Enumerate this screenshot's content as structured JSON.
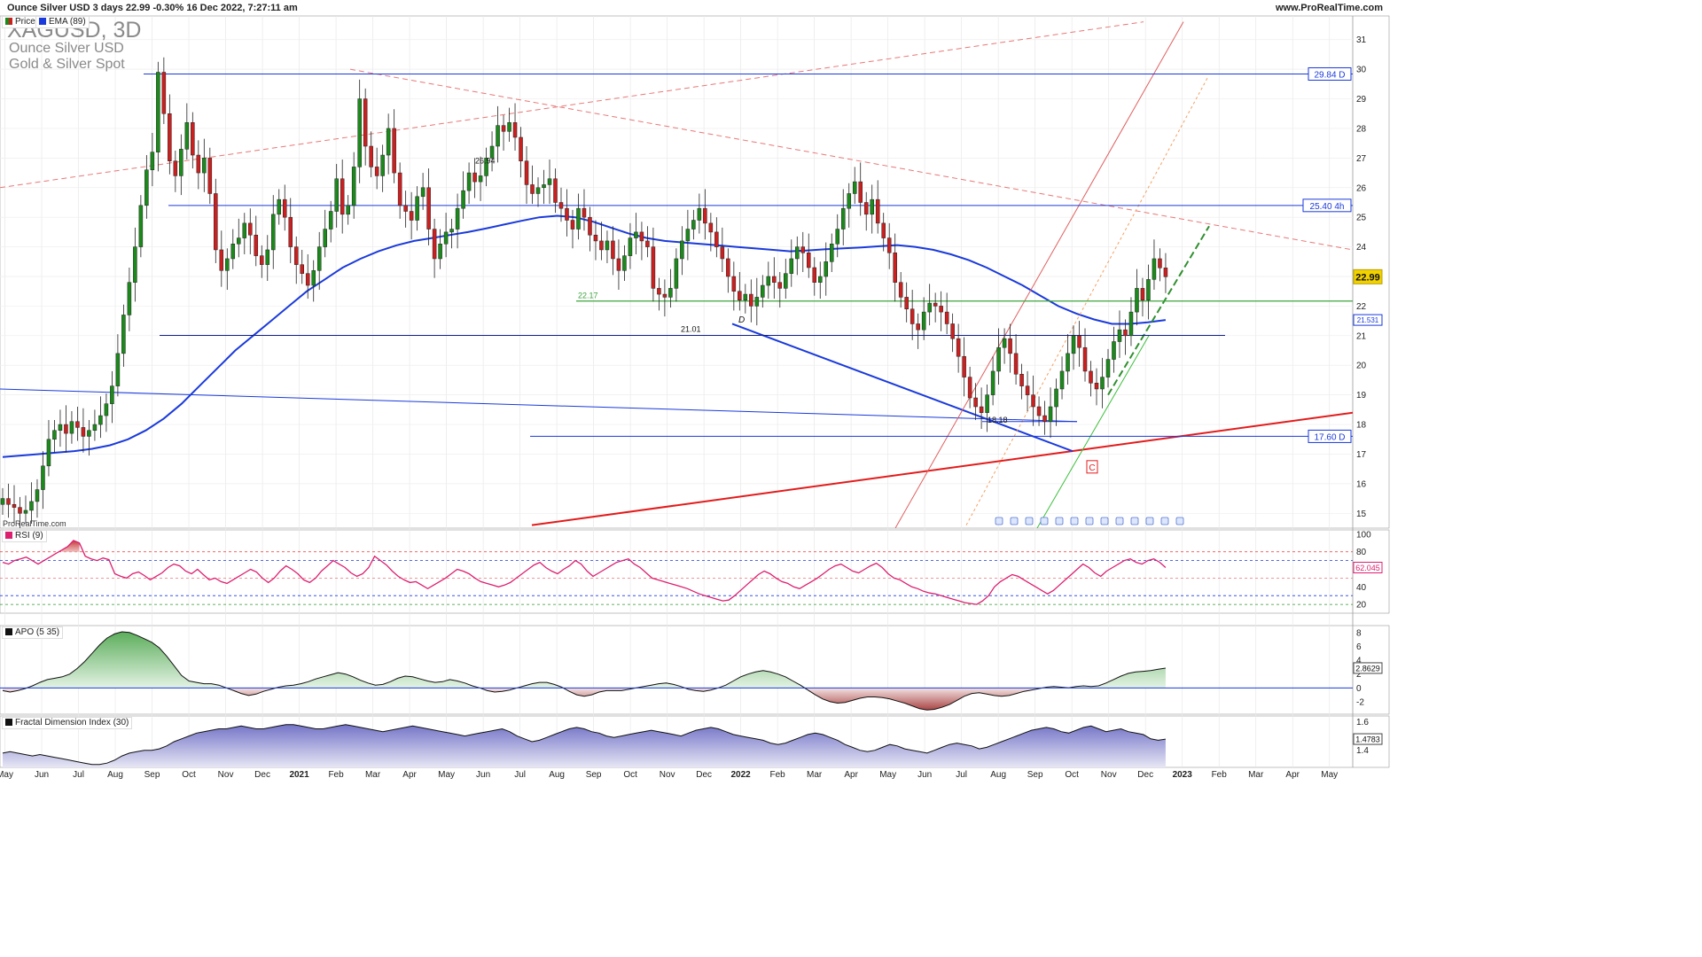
{
  "header": {
    "title": "Ounce Silver USD 3 days 22.99 -0.30% 16 Dec 2022, 7:27:11 am",
    "site": "www.ProRealTime.com"
  },
  "symbol": {
    "ticker": "XAGUSD, 3D",
    "name": "Ounce Silver USD",
    "category": "Gold & Silver Spot"
  },
  "legend": {
    "price": "Price",
    "ema": "EMA (89)",
    "rsi": "RSI (9)",
    "apo": "APO (5 35)",
    "fdi": "Fractal Dimension Index (30)"
  },
  "watermark": "ProRealTime.com",
  "colors": {
    "up": "#1a8a1a",
    "down": "#cc1f1f",
    "ema": "#1a3adb",
    "rsi": "#dd1f6f",
    "level_box": "#1a3adb",
    "price_box": "#f2d100",
    "trend_red": "#e31b1b",
    "support_green": "#3ca33c"
  },
  "chart_data": [
    {
      "type": "candlestick",
      "title": "XAGUSD, 3D",
      "x_ticks": [
        "May",
        "Jun",
        "Jul",
        "Aug",
        "Sep",
        "Oct",
        "Nov",
        "Dec",
        "2021",
        "Feb",
        "Mar",
        "Apr",
        "May",
        "Jun",
        "Jul",
        "Aug",
        "Sep",
        "Oct",
        "Nov",
        "Dec",
        "2022",
        "Feb",
        "Mar",
        "Apr",
        "May",
        "Jun",
        "Jul",
        "Aug",
        "Sep",
        "Oct",
        "Nov",
        "Dec",
        "2023",
        "Feb",
        "Mar",
        "Apr",
        "May"
      ],
      "x_range": [
        "2020-04-27",
        "2023-05-20"
      ],
      "ylim": [
        14.5,
        31.8
      ],
      "y_ticks": [
        15,
        16,
        17,
        18,
        19,
        20,
        21,
        22,
        23,
        24,
        25,
        26,
        27,
        28,
        29,
        30,
        31
      ],
      "last_price": 22.99,
      "closes": [
        15.5,
        15.3,
        15.2,
        15.0,
        15.1,
        15.4,
        15.8,
        16.6,
        17.5,
        17.8,
        18.0,
        17.7,
        18.1,
        17.9,
        17.6,
        17.8,
        18.0,
        18.3,
        18.7,
        19.3,
        20.4,
        21.7,
        22.8,
        24.0,
        25.4,
        26.6,
        27.2,
        29.9,
        28.5,
        26.9,
        26.4,
        27.3,
        28.2,
        27.1,
        26.5,
        27.0,
        25.8,
        23.9,
        23.2,
        23.6,
        24.1,
        24.3,
        24.8,
        24.4,
        23.7,
        23.4,
        23.9,
        25.1,
        25.6,
        25.0,
        24.0,
        23.4,
        23.1,
        22.7,
        23.2,
        24.0,
        24.6,
        25.2,
        26.3,
        25.1,
        25.4,
        26.7,
        29.0,
        27.4,
        26.7,
        26.4,
        27.1,
        28.0,
        26.5,
        25.4,
        25.2,
        24.9,
        25.7,
        26.0,
        24.6,
        23.6,
        24.1,
        24.5,
        24.6,
        25.3,
        25.9,
        26.5,
        26.2,
        26.4,
        27.0,
        27.4,
        28.1,
        27.9,
        28.2,
        27.7,
        26.9,
        26.1,
        25.8,
        26.0,
        26.1,
        26.3,
        25.5,
        25.3,
        24.9,
        24.6,
        25.3,
        25.0,
        24.4,
        24.2,
        23.9,
        24.2,
        23.6,
        23.2,
        23.7,
        24.3,
        24.5,
        24.2,
        24.0,
        22.6,
        22.4,
        22.3,
        22.6,
        23.6,
        24.2,
        24.6,
        24.9,
        25.3,
        24.8,
        24.5,
        24.0,
        23.6,
        23.0,
        22.5,
        22.2,
        22.4,
        22.0,
        22.3,
        22.7,
        23.0,
        22.8,
        22.6,
        23.1,
        23.6,
        24.0,
        23.8,
        23.3,
        22.8,
        23.0,
        23.5,
        24.1,
        24.6,
        25.3,
        25.8,
        26.2,
        25.5,
        25.1,
        25.6,
        24.8,
        24.3,
        23.8,
        22.8,
        22.3,
        21.9,
        21.4,
        21.2,
        21.8,
        22.1,
        22.0,
        21.8,
        21.4,
        20.9,
        20.3,
        19.6,
        18.9,
        18.6,
        18.4,
        19.0,
        19.8,
        20.6,
        20.9,
        20.4,
        19.7,
        19.3,
        19.0,
        18.6,
        18.3,
        18.1,
        18.6,
        19.2,
        19.8,
        20.4,
        21.0,
        20.6,
        19.8,
        19.4,
        19.2,
        19.6,
        20.2,
        20.8,
        21.2,
        21.0,
        21.8,
        22.6,
        22.2,
        22.9,
        23.6,
        23.29,
        22.99
      ],
      "ema_values": [
        16.9,
        16.95,
        17.0,
        17.05,
        17.1,
        17.18,
        17.3,
        17.5,
        17.8,
        18.2,
        18.7,
        19.3,
        19.9,
        20.5,
        21.0,
        21.5,
        22.0,
        22.5,
        22.9,
        23.3,
        23.6,
        23.85,
        24.05,
        24.2,
        24.3,
        24.4,
        24.5,
        24.62,
        24.75,
        24.88,
        25.0,
        25.05,
        25.0,
        24.85,
        24.65,
        24.45,
        24.3,
        24.2,
        24.15,
        24.1,
        24.05,
        24.0,
        23.95,
        23.9,
        23.85,
        23.88,
        23.92,
        23.95,
        23.98,
        24.02,
        24.06,
        24.0,
        23.9,
        23.75,
        23.55,
        23.3,
        23.0,
        22.7,
        22.35,
        22.0,
        21.75,
        21.55,
        21.4,
        21.4,
        21.45,
        21.53
      ],
      "horizontal_levels": [
        {
          "value": 29.84,
          "label": "29.84 D"
        },
        {
          "value": 25.4,
          "label": "25.40 4h"
        },
        {
          "value": 22.17,
          "label": "22.17"
        },
        {
          "value": 21.01,
          "label": "21.01"
        },
        {
          "value": 17.6,
          "label": "17.60 D"
        },
        {
          "value": 26.94,
          "label": "26.94"
        },
        {
          "value": 18.18,
          "label": "18.18"
        },
        {
          "value": 21.531,
          "label": "21.531"
        }
      ],
      "annotations": [
        "D",
        "C"
      ]
    },
    {
      "type": "line",
      "title": "RSI (9)",
      "ylim": [
        10,
        105
      ],
      "y_ticks": [
        20,
        40,
        60,
        80,
        100
      ],
      "levels": [
        80,
        70,
        50,
        30,
        20
      ],
      "last_value": 62.045,
      "last_label": "62.045",
      "values": [
        68,
        66,
        70,
        72,
        74,
        70,
        66,
        70,
        74,
        78,
        82,
        86,
        93,
        90,
        75,
        72,
        70,
        73,
        71,
        55,
        52,
        50,
        55,
        57,
        53,
        48,
        52,
        56,
        62,
        66,
        64,
        58,
        55,
        60,
        54,
        48,
        50,
        46,
        44,
        48,
        52,
        56,
        60,
        57,
        50,
        45,
        50,
        58,
        64,
        60,
        55,
        48,
        45,
        50,
        58,
        64,
        70,
        66,
        62,
        56,
        52,
        55,
        62,
        75,
        70,
        65,
        58,
        52,
        48,
        45,
        46,
        42,
        38,
        42,
        46,
        50,
        55,
        60,
        58,
        55,
        50,
        46,
        44,
        42,
        40,
        42,
        45,
        50,
        55,
        60,
        65,
        68,
        62,
        58,
        55,
        60,
        64,
        70,
        66,
        58,
        52,
        56,
        60,
        64,
        68,
        70,
        72,
        66,
        62,
        56,
        50,
        48,
        46,
        44,
        42,
        40,
        38,
        35,
        32,
        30,
        28,
        26,
        24,
        25,
        30,
        36,
        42,
        48,
        54,
        58,
        55,
        50,
        46,
        44,
        40,
        38,
        42,
        46,
        50,
        55,
        60,
        64,
        66,
        62,
        58,
        56,
        60,
        64,
        67,
        62,
        55,
        50,
        48,
        44,
        40,
        38,
        35,
        33,
        32,
        30,
        28,
        26,
        24,
        22,
        21,
        20,
        24,
        30,
        40,
        46,
        50,
        54,
        52,
        48,
        44,
        40,
        36,
        32,
        36,
        42,
        48,
        54,
        60,
        66,
        62,
        56,
        52,
        58,
        62,
        66,
        70,
        72,
        68,
        66,
        70,
        72,
        68,
        62
      ]
    },
    {
      "type": "area",
      "title": "APO (5 35)",
      "ylim": [
        -3.8,
        9.0
      ],
      "y_ticks": [
        -2,
        0,
        2,
        4,
        6,
        8
      ],
      "last_value": 2.8629,
      "last_label": "2.8629",
      "values": [
        -0.4,
        -0.6,
        -0.4,
        -0.1,
        0.3,
        0.8,
        1.2,
        1.4,
        1.6,
        2.0,
        2.8,
        3.8,
        5.0,
        6.2,
        7.2,
        7.8,
        8.1,
        8.0,
        7.6,
        7.1,
        6.6,
        5.8,
        4.6,
        3.2,
        1.8,
        1.0,
        0.8,
        0.6,
        0.6,
        0.4,
        0.0,
        -0.4,
        -0.8,
        -1.1,
        -0.9,
        -0.5,
        -0.2,
        0.1,
        0.3,
        0.4,
        0.6,
        0.9,
        1.3,
        1.6,
        1.9,
        2.2,
        2.0,
        1.6,
        1.1,
        0.7,
        0.4,
        0.5,
        0.9,
        1.4,
        1.7,
        1.6,
        1.3,
        1.0,
        0.8,
        0.9,
        1.2,
        1.0,
        0.7,
        0.3,
        0.0,
        -0.4,
        -0.6,
        -0.5,
        -0.3,
        0.0,
        0.3,
        0.6,
        0.8,
        0.8,
        0.5,
        0.1,
        -0.5,
        -1.0,
        -1.2,
        -1.0,
        -0.6,
        -0.4,
        -0.4,
        -0.4,
        -0.2,
        0.0,
        0.2,
        0.4,
        0.6,
        0.7,
        0.5,
        0.2,
        -0.2,
        -0.4,
        -0.5,
        -0.3,
        0.0,
        0.4,
        1.0,
        1.6,
        2.0,
        2.3,
        2.5,
        2.3,
        2.0,
        1.6,
        1.0,
        0.4,
        -0.3,
        -1.0,
        -1.6,
        -2.0,
        -2.2,
        -2.1,
        -1.8,
        -1.5,
        -1.3,
        -1.3,
        -1.4,
        -1.6,
        -1.9,
        -2.2,
        -2.6,
        -3.0,
        -3.2,
        -3.1,
        -2.8,
        -2.4,
        -1.8,
        -1.2,
        -0.8,
        -0.7,
        -0.9,
        -1.1,
        -1.2,
        -1.1,
        -0.8,
        -0.5,
        -0.3,
        -0.1,
        0.1,
        0.2,
        0.1,
        0.0,
        0.2,
        0.3,
        0.2,
        0.3,
        0.7,
        1.2,
        1.7,
        2.1,
        2.3,
        2.4,
        2.5,
        2.7,
        2.86
      ]
    },
    {
      "type": "area",
      "title": "Fractal Dimension Index (30)",
      "ylim": [
        1.28,
        1.64
      ],
      "y_ticks": [
        1.4,
        1.6
      ],
      "last_value": 1.4783,
      "last_label": "1.4783",
      "values": [
        1.38,
        1.39,
        1.38,
        1.37,
        1.36,
        1.37,
        1.36,
        1.35,
        1.34,
        1.33,
        1.32,
        1.31,
        1.3,
        1.3,
        1.31,
        1.33,
        1.36,
        1.38,
        1.39,
        1.4,
        1.4,
        1.41,
        1.43,
        1.46,
        1.48,
        1.5,
        1.52,
        1.53,
        1.54,
        1.55,
        1.55,
        1.56,
        1.57,
        1.56,
        1.55,
        1.55,
        1.56,
        1.57,
        1.58,
        1.58,
        1.57,
        1.56,
        1.55,
        1.55,
        1.56,
        1.57,
        1.58,
        1.57,
        1.56,
        1.55,
        1.54,
        1.53,
        1.54,
        1.55,
        1.56,
        1.57,
        1.56,
        1.55,
        1.54,
        1.53,
        1.52,
        1.51,
        1.5,
        1.51,
        1.52,
        1.53,
        1.54,
        1.55,
        1.53,
        1.5,
        1.48,
        1.46,
        1.47,
        1.49,
        1.51,
        1.53,
        1.55,
        1.56,
        1.55,
        1.53,
        1.52,
        1.5,
        1.49,
        1.5,
        1.51,
        1.52,
        1.53,
        1.54,
        1.53,
        1.52,
        1.51,
        1.5,
        1.52,
        1.54,
        1.55,
        1.56,
        1.55,
        1.53,
        1.51,
        1.5,
        1.49,
        1.48,
        1.47,
        1.45,
        1.44,
        1.45,
        1.47,
        1.49,
        1.51,
        1.52,
        1.51,
        1.49,
        1.47,
        1.44,
        1.42,
        1.4,
        1.39,
        1.4,
        1.42,
        1.44,
        1.43,
        1.41,
        1.4,
        1.39,
        1.38,
        1.4,
        1.42,
        1.44,
        1.45,
        1.44,
        1.43,
        1.41,
        1.42,
        1.44,
        1.46,
        1.48,
        1.5,
        1.52,
        1.54,
        1.55,
        1.56,
        1.55,
        1.53,
        1.52,
        1.54,
        1.56,
        1.57,
        1.55,
        1.53,
        1.54,
        1.55,
        1.53,
        1.52,
        1.51,
        1.48,
        1.47,
        1.4783
      ]
    }
  ]
}
